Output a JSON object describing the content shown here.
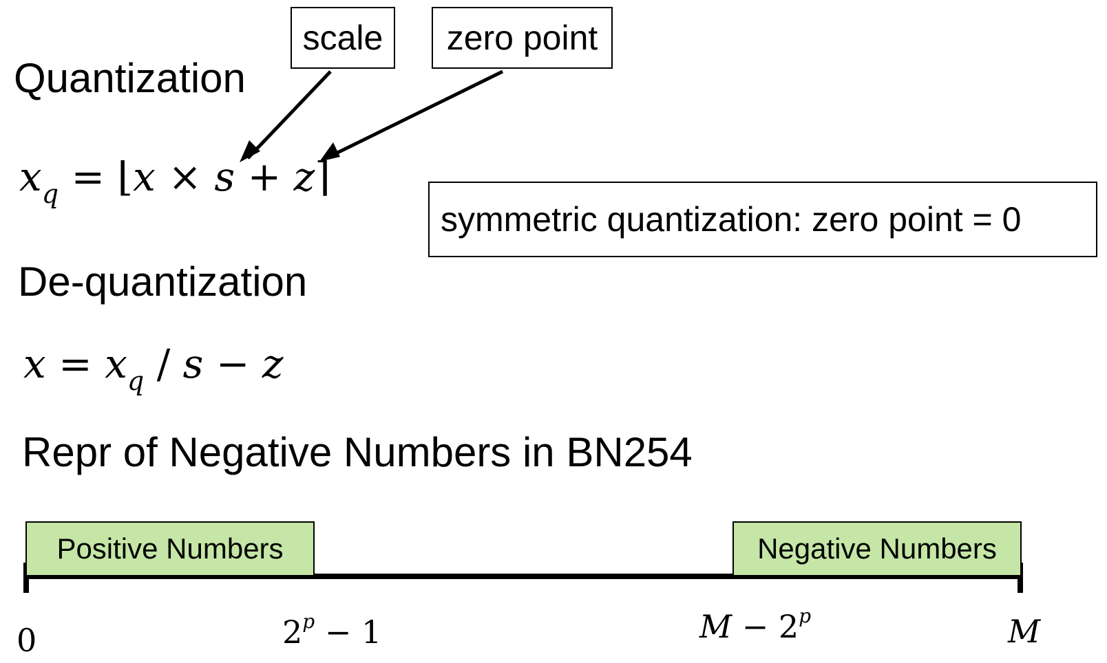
{
  "labels": {
    "scale": "scale",
    "zero_point": "zero point"
  },
  "sections": {
    "quantization": "Quantization",
    "dequantization": "De-quantization",
    "negatives": "Repr of Negative Numbers in BN254"
  },
  "formulas": {
    "quantization": {
      "lhs": "x",
      "lhs_sub": "q",
      "eq": "=",
      "lfloor": "⌊",
      "x": "x",
      "times": "×",
      "s": "s",
      "plus": "+",
      "z": "z",
      "rceil": "⌉"
    },
    "dequantization": {
      "lhs": "x",
      "eq": "=",
      "xq": "x",
      "xq_sub": "q",
      "div": "/",
      "s": "s",
      "minus": "−",
      "z": "z"
    }
  },
  "note": "symmetric quantization: zero point = 0",
  "number_line": {
    "positive_label": "Positive Numbers",
    "negative_label": "Negative Numbers",
    "ticks": {
      "zero": "0",
      "pos_end_base": "2",
      "pos_end_exp": "p",
      "pos_end_rest": " − 1",
      "neg_start_M": "M",
      "neg_start_mid": " − 2",
      "neg_start_exp": "p",
      "end": "M"
    }
  },
  "colors": {
    "region_fill": "#c5e6a6"
  }
}
